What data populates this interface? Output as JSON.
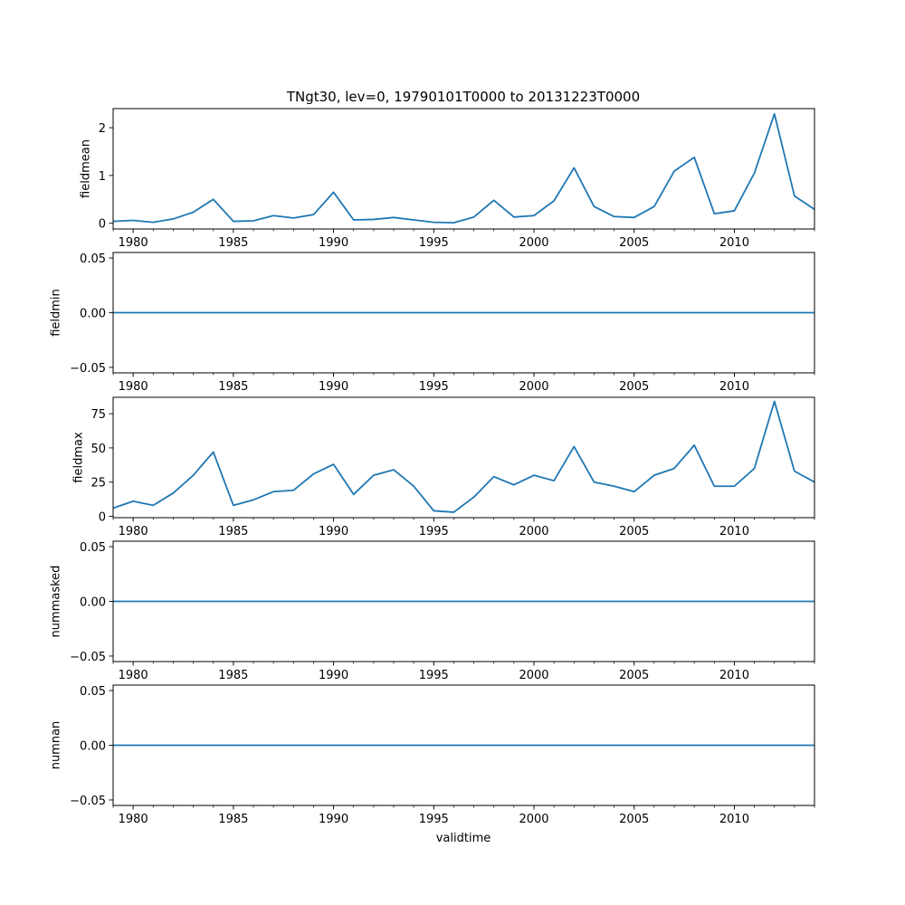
{
  "title": "TNgt30, lev=0, 19790101T0000 to 20131223T0000",
  "xlabel": "validtime",
  "series_color": "#1f77b4",
  "chart_data": [
    {
      "type": "line",
      "ylabel": "fieldmean",
      "xlim": [
        1979,
        2014
      ],
      "ylim": [
        -0.12,
        2.4
      ],
      "yticks": [
        0,
        1,
        2
      ],
      "ytick_labels": [
        "0",
        "1",
        "2"
      ],
      "x": [
        1979,
        1980,
        1981,
        1982,
        1983,
        1984,
        1985,
        1986,
        1987,
        1988,
        1989,
        1990,
        1991,
        1992,
        1993,
        1994,
        1995,
        1996,
        1997,
        1998,
        1999,
        2000,
        2001,
        2002,
        2003,
        2004,
        2005,
        2006,
        2007,
        2008,
        2009,
        2010,
        2011,
        2012,
        2013,
        2014
      ],
      "y": [
        0.04,
        0.06,
        0.02,
        0.09,
        0.23,
        0.5,
        0.04,
        0.05,
        0.16,
        0.11,
        0.18,
        0.65,
        0.07,
        0.08,
        0.12,
        0.07,
        0.02,
        0.01,
        0.13,
        0.48,
        0.13,
        0.16,
        0.47,
        1.16,
        0.35,
        0.14,
        0.12,
        0.35,
        1.09,
        1.38,
        0.2,
        0.26,
        1.05,
        2.29,
        0.57,
        0.29
      ]
    },
    {
      "type": "line",
      "ylabel": "fieldmin",
      "xlim": [
        1979,
        2014
      ],
      "ylim": [
        -0.055,
        0.055
      ],
      "yticks": [
        -0.05,
        0,
        0.05
      ],
      "ytick_labels": [
        "−0.05",
        "0.00",
        "0.05"
      ],
      "x": [
        1979,
        2014
      ],
      "y": [
        0,
        0
      ]
    },
    {
      "type": "line",
      "ylabel": "fieldmax",
      "xlim": [
        1979,
        2014
      ],
      "ylim": [
        -1,
        87
      ],
      "yticks": [
        0,
        25,
        50,
        75
      ],
      "ytick_labels": [
        "0",
        "25",
        "50",
        "75"
      ],
      "x": [
        1979,
        1980,
        1981,
        1982,
        1983,
        1984,
        1985,
        1986,
        1987,
        1988,
        1989,
        1990,
        1991,
        1992,
        1993,
        1994,
        1995,
        1996,
        1997,
        1998,
        1999,
        2000,
        2001,
        2002,
        2003,
        2004,
        2005,
        2006,
        2007,
        2008,
        2009,
        2010,
        2011,
        2012,
        2013,
        2014
      ],
      "y": [
        6,
        11,
        8,
        17,
        30,
        47,
        8,
        12,
        18,
        19,
        31,
        38,
        16,
        30,
        34,
        22,
        4,
        3,
        14,
        29,
        23,
        30,
        26,
        51,
        25,
        22,
        18,
        30,
        35,
        52,
        22,
        22,
        35,
        84,
        33,
        25
      ]
    },
    {
      "type": "line",
      "ylabel": "nummasked",
      "xlim": [
        1979,
        2014
      ],
      "ylim": [
        -0.055,
        0.055
      ],
      "yticks": [
        -0.05,
        0,
        0.05
      ],
      "ytick_labels": [
        "−0.05",
        "0.00",
        "0.05"
      ],
      "x": [
        1979,
        2014
      ],
      "y": [
        0,
        0
      ]
    },
    {
      "type": "line",
      "ylabel": "numnan",
      "xlim": [
        1979,
        2014
      ],
      "ylim": [
        -0.055,
        0.055
      ],
      "yticks": [
        -0.05,
        0,
        0.05
      ],
      "ytick_labels": [
        "−0.05",
        "0.00",
        "0.05"
      ],
      "x": [
        1979,
        2014
      ],
      "y": [
        0,
        0
      ]
    }
  ],
  "xticks": [
    1980,
    1985,
    1990,
    1995,
    2000,
    2005,
    2010
  ],
  "xtick_labels": [
    "1980",
    "1985",
    "1990",
    "1995",
    "2000",
    "2005",
    "2010"
  ],
  "minor_xticks": [
    1979,
    1980,
    1981,
    1982,
    1983,
    1984,
    1985,
    1986,
    1987,
    1988,
    1989,
    1990,
    1991,
    1992,
    1993,
    1994,
    1995,
    1996,
    1997,
    1998,
    1999,
    2000,
    2001,
    2002,
    2003,
    2004,
    2005,
    2006,
    2007,
    2008,
    2009,
    2010,
    2011,
    2012,
    2013,
    2014
  ]
}
